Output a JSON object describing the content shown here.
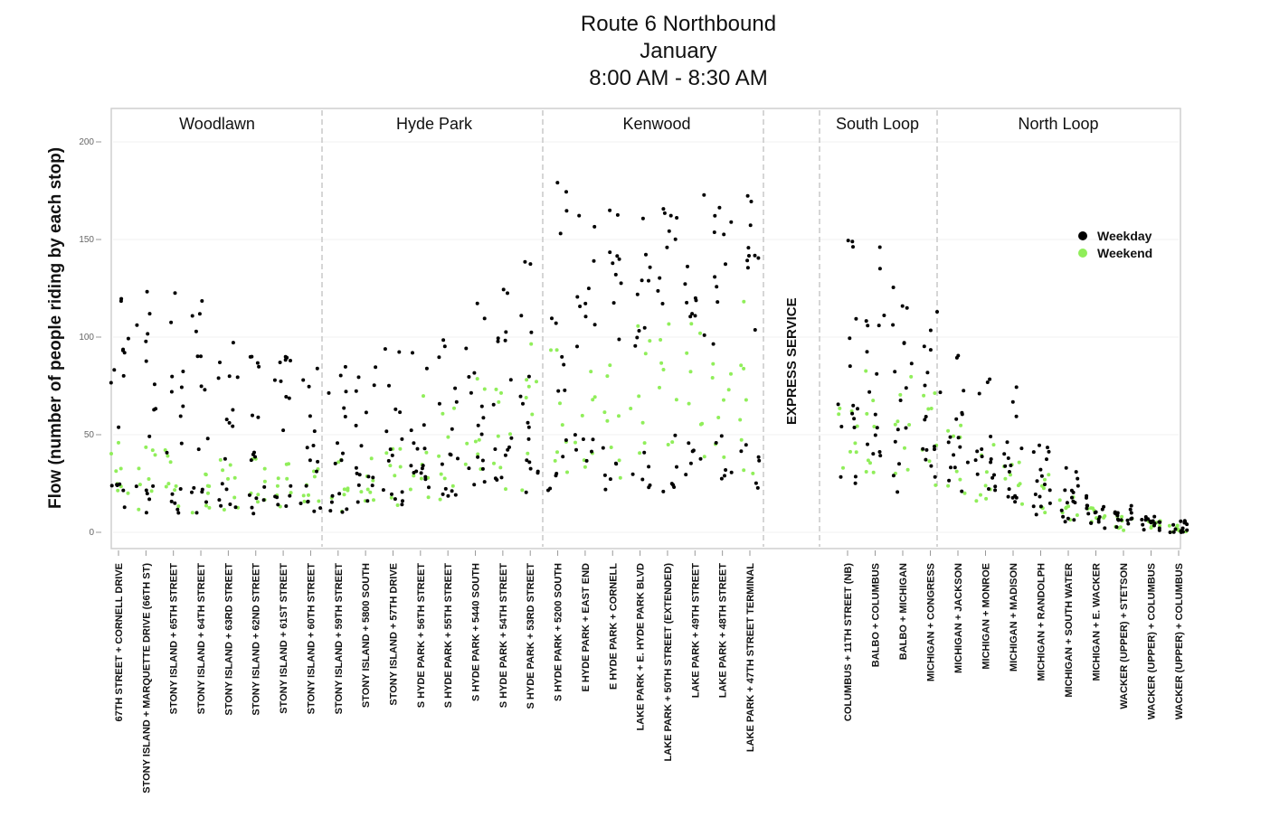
{
  "title_lines": [
    "Route 6    Northbound",
    "January",
    "8:00 AM - 8:30 AM"
  ],
  "chart_data": {
    "type": "scatter",
    "title": "Route 6    Northbound January 8:00 AM - 8:30 AM",
    "xlabel": "",
    "ylabel": "Flow (number of people riding by each stop)",
    "ylim": [
      0,
      200
    ],
    "yticks": [
      0,
      50,
      100,
      150,
      200
    ],
    "grid": true,
    "legend_position": "right",
    "series_colors": {
      "Weekday": "#000000",
      "Weekend": "#90ee5a"
    },
    "regions": [
      "Woodlawn",
      "Hyde Park",
      "Kenwood",
      "South Loop",
      "North Loop"
    ],
    "express_label": [
      "EXPRESS",
      "SERVICE"
    ],
    "categories": [
      "67TH STREET + CORNELL DRIVE",
      "STONY ISLAND + MARQUETTE DRIVE (66TH ST)",
      "STONY ISLAND + 65TH STREET",
      "STONY ISLAND + 64TH STREET",
      "STONY ISLAND + 63RD STREET",
      "STONY ISLAND + 62ND STREET",
      "STONY ISLAND + 61ST STREET",
      "STONY ISLAND + 60TH STREET",
      "STONY ISLAND + 59TH STREET",
      "STONY ISLAND + 5800 SOUTH",
      "STONY ISLAND + 57TH DRIVE",
      "S HYDE PARK + 56TH STREET",
      "S HYDE PARK + 55TH STREET",
      "S HYDE PARK + 5440 SOUTH",
      "S HYDE PARK + 54TH STREET",
      "S HYDE PARK + 53RD STREET",
      "S HYDE PARK + 5200 SOUTH",
      "E HYDE PARK + EAST END",
      "E HYDE PARK + CORNELL",
      "LAKE PARK + E. HYDE PARK BLVD",
      "LAKE PARK + 50TH STREET (EXTENDED)",
      "LAKE PARK + 49TH STREET",
      "LAKE PARK + 48TH STREET",
      "LAKE PARK + 47TH STREET TERMINAL",
      "COLUMBUS + 11TH STREET (NB)",
      "BALBO + COLUMBUS",
      "BALBO + MICHIGAN",
      "MICHIGAN + CONGRESS",
      "MICHIGAN + JACKSON",
      "MICHIGAN + MONROE",
      "MICHIGAN + MADISON",
      "MICHIGAN + RANDOLPH",
      "MICHIGAN + SOUTH WATER",
      "MICHIGAN + E. WACKER",
      "WACKER (UPPER) + STETSON",
      "WACKER (UPPER) + COLUMBUS",
      "WACKER (UPPER) + COLUMBUS"
    ],
    "series": [
      {
        "name": "Weekday",
        "ranges": [
          [
            45,
            120
          ],
          [
            45,
            130
          ],
          [
            40,
            125
          ],
          [
            35,
            120
          ],
          [
            35,
            100
          ],
          [
            30,
            95
          ],
          [
            30,
            90
          ],
          [
            30,
            85
          ],
          [
            25,
            85
          ],
          [
            20,
            90
          ],
          [
            30,
            95
          ],
          [
            30,
            100
          ],
          [
            30,
            110
          ],
          [
            30,
            120
          ],
          [
            40,
            130
          ],
          [
            45,
            150
          ],
          [
            70,
            180
          ],
          [
            90,
            180
          ],
          [
            95,
            170
          ],
          [
            95,
            170
          ],
          [
            100,
            175
          ],
          [
            95,
            175
          ],
          [
            95,
            175
          ],
          [
            100,
            175
          ],
          [
            60,
            155
          ],
          [
            55,
            150
          ],
          [
            40,
            140
          ],
          [
            30,
            135
          ],
          [
            20,
            100
          ],
          [
            20,
            85
          ],
          [
            15,
            75
          ],
          [
            12,
            55
          ],
          [
            6,
            35
          ],
          [
            3,
            22
          ],
          [
            2,
            15
          ],
          [
            1,
            10
          ],
          [
            0,
            6
          ]
        ],
        "lows": [
          [
            8,
            25
          ],
          [
            8,
            25
          ],
          [
            8,
            25
          ],
          [
            8,
            25
          ],
          [
            8,
            25
          ],
          [
            8,
            25
          ],
          [
            8,
            25
          ],
          [
            10,
            30
          ],
          [
            10,
            30
          ],
          [
            12,
            30
          ],
          [
            12,
            30
          ],
          [
            15,
            35
          ],
          [
            15,
            40
          ],
          [
            18,
            40
          ],
          [
            20,
            45
          ],
          [
            20,
            45
          ],
          [
            20,
            50
          ],
          [
            20,
            50
          ],
          [
            20,
            50
          ],
          [
            20,
            50
          ],
          [
            20,
            50
          ],
          [
            20,
            50
          ],
          [
            20,
            50
          ],
          [
            20,
            50
          ],
          [
            8,
            60
          ],
          [
            30,
            60
          ],
          [
            20,
            60
          ],
          [
            20,
            60
          ],
          [
            20,
            50
          ],
          [
            20,
            45
          ],
          [
            10,
            40
          ],
          [
            8,
            35
          ],
          [
            5,
            25
          ],
          [
            2,
            15
          ],
          [
            1,
            10
          ],
          [
            0,
            6
          ],
          [
            0,
            4
          ]
        ]
      },
      {
        "name": "Weekend",
        "ranges": [
          [
            10,
            48
          ],
          [
            10,
            45
          ],
          [
            10,
            45
          ],
          [
            10,
            42
          ],
          [
            10,
            40
          ],
          [
            10,
            38
          ],
          [
            10,
            38
          ],
          [
            10,
            38
          ],
          [
            10,
            40
          ],
          [
            10,
            42
          ],
          [
            12,
            45
          ],
          [
            15,
            70
          ],
          [
            15,
            80
          ],
          [
            20,
            90
          ],
          [
            20,
            95
          ],
          [
            20,
            100
          ],
          [
            25,
            100
          ],
          [
            25,
            105
          ],
          [
            25,
            110
          ],
          [
            25,
            115
          ],
          [
            30,
            118
          ],
          [
            30,
            118
          ],
          [
            30,
            118
          ],
          [
            30,
            120
          ],
          [
            30,
            65
          ],
          [
            30,
            85
          ],
          [
            20,
            88
          ],
          [
            20,
            80
          ],
          [
            15,
            60
          ],
          [
            12,
            45
          ],
          [
            10,
            38
          ],
          [
            8,
            30
          ],
          [
            5,
            20
          ],
          [
            3,
            15
          ],
          [
            1,
            10
          ],
          [
            0,
            6
          ],
          [
            0,
            4
          ]
        ]
      }
    ]
  },
  "legend": [
    {
      "label": "Weekday",
      "color": "#000000"
    },
    {
      "label": "Weekend",
      "color": "#90ee5a"
    }
  ]
}
